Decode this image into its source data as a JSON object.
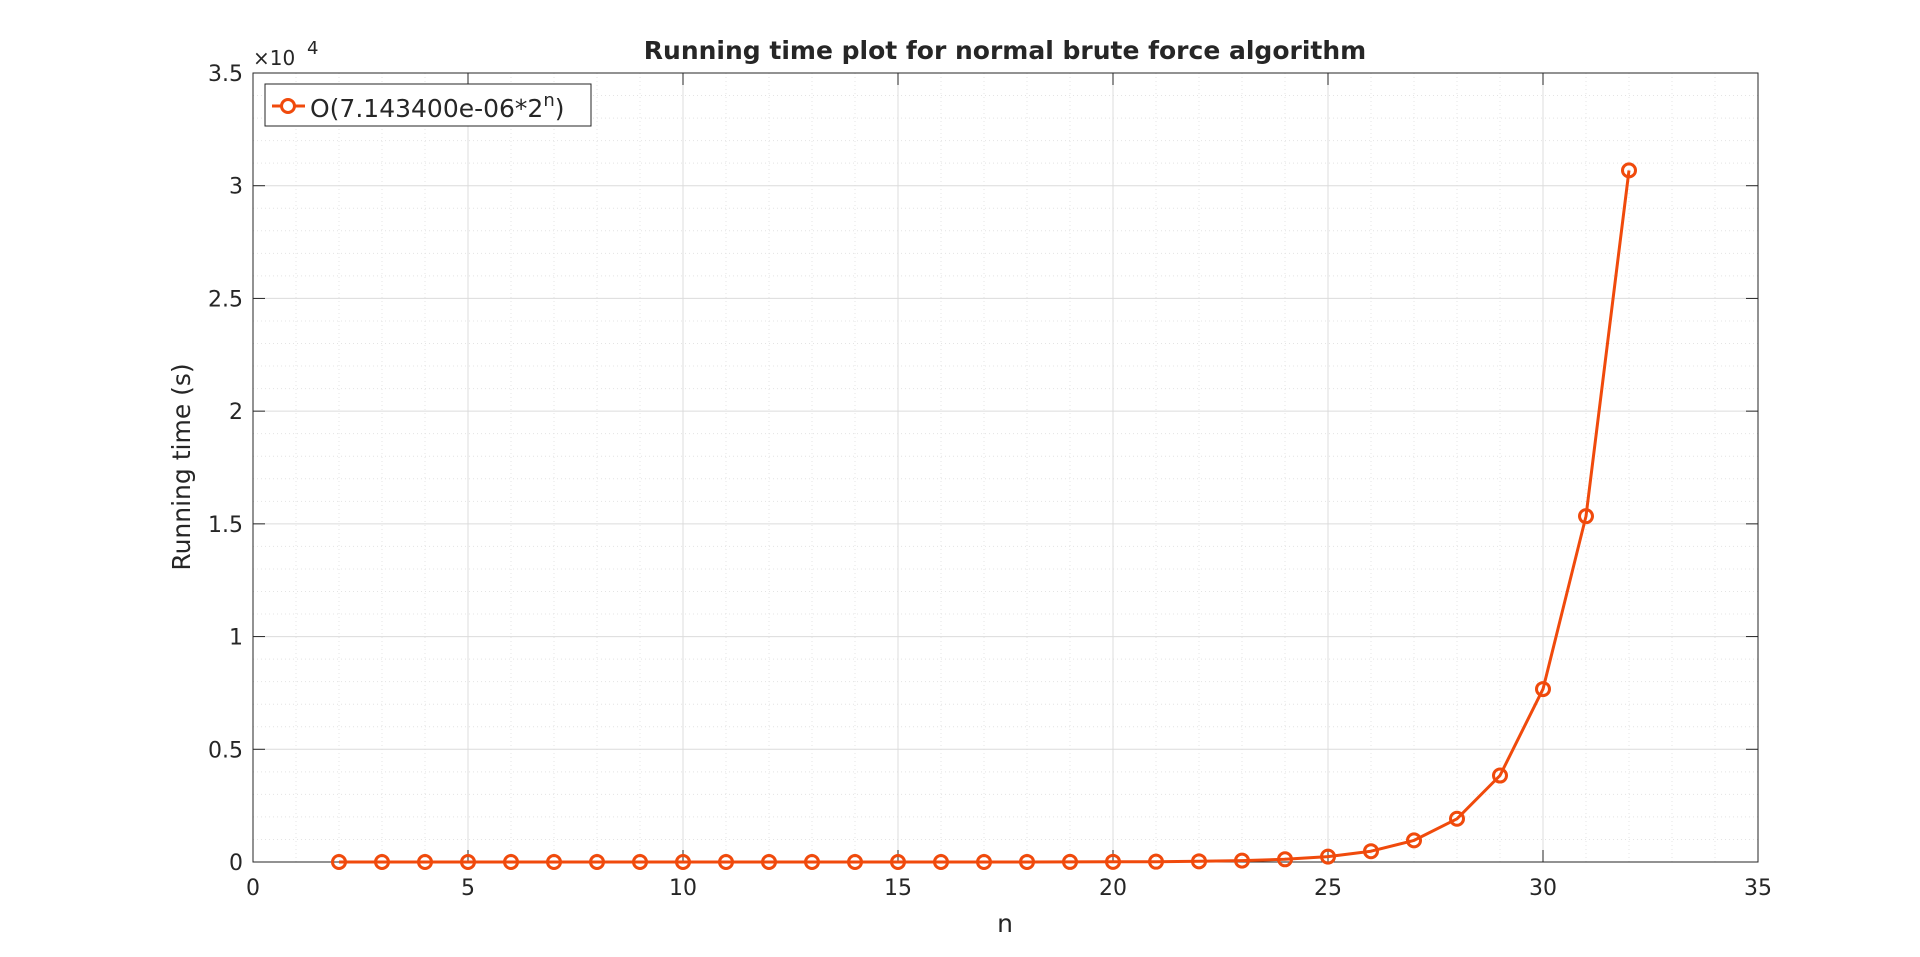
{
  "chart_data": {
    "type": "line",
    "title": "Running time plot for normal brute force algorithm",
    "xlabel": "n",
    "ylabel": "Running time (s)",
    "xlim": [
      0,
      35
    ],
    "ylim": [
      0,
      35000
    ],
    "x_ticks": [
      0,
      5,
      10,
      15,
      20,
      25,
      30,
      35
    ],
    "x_tick_labels": [
      "0",
      "5",
      "10",
      "15",
      "20",
      "25",
      "30",
      "35"
    ],
    "y_ticks": [
      0,
      5000,
      10000,
      15000,
      20000,
      25000,
      30000,
      35000
    ],
    "y_tick_labels": [
      "0",
      "0.5",
      "1",
      "1.5",
      "2",
      "2.5",
      "3",
      "3.5"
    ],
    "y_exponent_base": "×10",
    "y_exponent_power": "4",
    "grid": true,
    "minor_grid": true,
    "legend_position": "top-left",
    "series": [
      {
        "name": "O(7.143400e-06*2",
        "name_superscript": "n",
        "name_suffix": ")",
        "color": "#f04a0c",
        "marker": "circle",
        "x": [
          2,
          3,
          4,
          5,
          6,
          7,
          8,
          9,
          10,
          11,
          12,
          13,
          14,
          15,
          16,
          17,
          18,
          19,
          20,
          21,
          22,
          23,
          24,
          25,
          26,
          27,
          28,
          29,
          30,
          31,
          32
        ],
        "y": [
          2.857e-05,
          5.715e-05,
          0.0001143,
          0.0002286,
          0.0004572,
          0.0009144,
          0.001829,
          0.003657,
          0.007315,
          0.01463,
          0.02926,
          0.05852,
          0.117,
          0.2341,
          0.4681,
          0.9363,
          1.873,
          3.745,
          7.49,
          14.98,
          29.96,
          59.92,
          119.8,
          239.7,
          479.4,
          958.8,
          1917.6,
          3835.2,
          7670.3,
          15340.7,
          30681.4
        ]
      }
    ]
  }
}
